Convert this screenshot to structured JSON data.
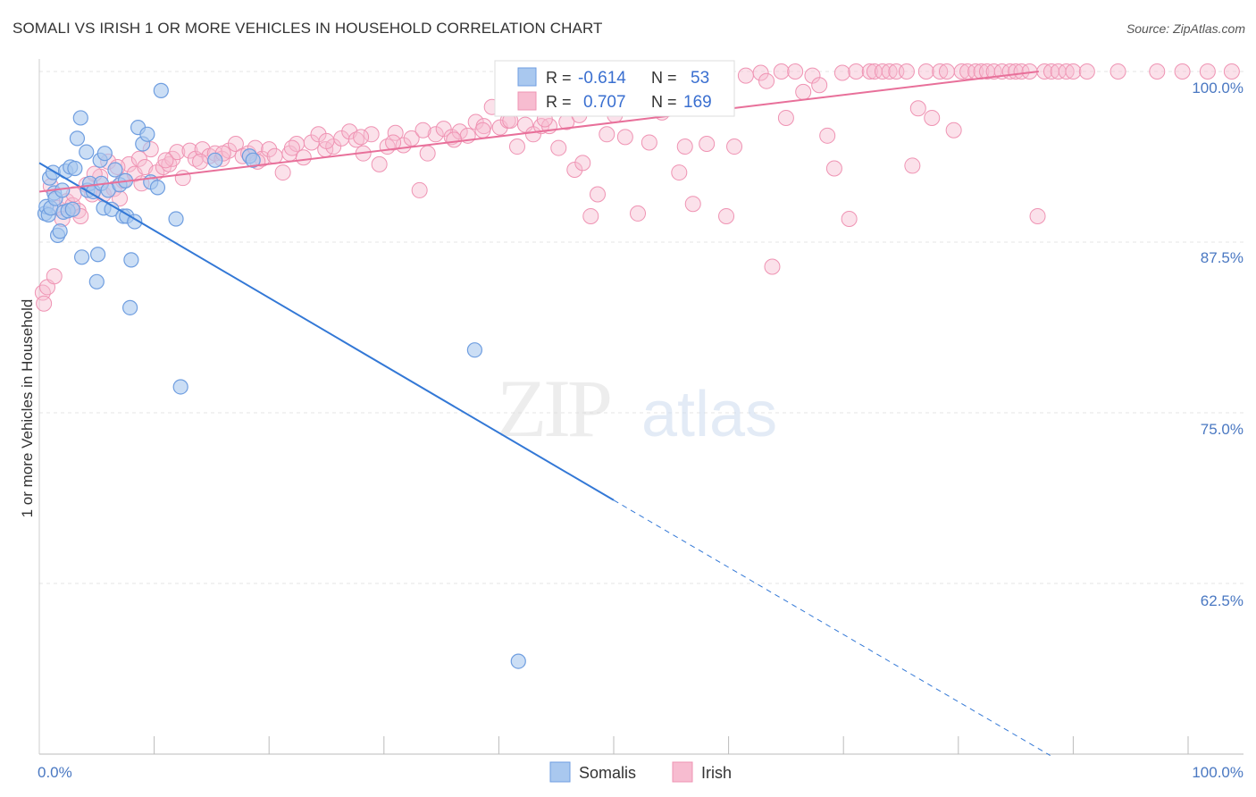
{
  "title": "SOMALI VS IRISH 1 OR MORE VEHICLES IN HOUSEHOLD CORRELATION CHART",
  "source": "Source: ZipAtlas.com",
  "watermark": {
    "zip": "ZIP",
    "atlas": "atlas"
  },
  "legend": {
    "somali": {
      "r_label": "R =",
      "r_value": "-0.614",
      "n_label": "N =",
      "n_value": "53"
    },
    "irish": {
      "r_label": "R =",
      "r_value": "0.707",
      "n_label": "N =",
      "n_value": "169"
    }
  },
  "colors": {
    "somali_fill": "#a9c8ef",
    "somali_stroke": "#6f9ee0",
    "somali_line": "#3378d6",
    "irish_fill": "#f7bcd0",
    "irish_stroke": "#ef93b3",
    "irish_line": "#e8709a",
    "grid": "#e6e6e6",
    "axis_text": "#4a78c2"
  },
  "chart_data": {
    "type": "scatter",
    "title": "SOMALI VS IRISH 1 OR MORE VEHICLES IN HOUSEHOLD CORRELATION CHART",
    "xlabel": "",
    "ylabel": "1 or more Vehicles in Household",
    "xlim": [
      0,
      100
    ],
    "ylim": [
      50,
      100
    ],
    "x_tick_labels": [
      "0.0%",
      "100.0%"
    ],
    "y_ticks": [
      62.5,
      75.0,
      87.5,
      100.0
    ],
    "y_tick_labels": [
      "62.5%",
      "75.0%",
      "87.5%",
      "100.0%"
    ],
    "grid": true,
    "legend_position": "top-center",
    "series": [
      {
        "name": "Somalis",
        "points": [
          [
            0.5,
            89.6
          ],
          [
            0.6,
            90.1
          ],
          [
            0.8,
            89.5
          ],
          [
            0.9,
            92.2
          ],
          [
            1.0,
            90.0
          ],
          [
            1.2,
            92.6
          ],
          [
            1.3,
            91.1
          ],
          [
            1.4,
            90.7
          ],
          [
            1.6,
            88.0
          ],
          [
            1.8,
            88.3
          ],
          [
            2.0,
            91.3
          ],
          [
            2.1,
            89.7
          ],
          [
            2.3,
            92.7
          ],
          [
            2.5,
            89.8
          ],
          [
            2.7,
            93.0
          ],
          [
            2.9,
            89.9
          ],
          [
            3.1,
            92.9
          ],
          [
            3.3,
            95.1
          ],
          [
            3.6,
            96.6
          ],
          [
            3.7,
            86.4
          ],
          [
            4.1,
            94.1
          ],
          [
            4.2,
            91.3
          ],
          [
            4.4,
            91.8
          ],
          [
            4.7,
            91.2
          ],
          [
            5.0,
            84.6
          ],
          [
            5.1,
            86.6
          ],
          [
            5.3,
            93.5
          ],
          [
            5.4,
            91.8
          ],
          [
            5.6,
            90.0
          ],
          [
            5.7,
            94.0
          ],
          [
            6.0,
            91.3
          ],
          [
            6.3,
            89.9
          ],
          [
            6.6,
            92.8
          ],
          [
            7.0,
            91.7
          ],
          [
            7.3,
            89.4
          ],
          [
            7.5,
            92.0
          ],
          [
            7.6,
            89.4
          ],
          [
            7.9,
            82.7
          ],
          [
            8.0,
            86.2
          ],
          [
            8.3,
            89.0
          ],
          [
            8.6,
            95.9
          ],
          [
            9.0,
            94.7
          ],
          [
            9.4,
            95.4
          ],
          [
            9.7,
            91.9
          ],
          [
            10.3,
            91.5
          ],
          [
            10.6,
            98.6
          ],
          [
            11.9,
            89.2
          ],
          [
            12.3,
            76.9
          ],
          [
            15.3,
            93.5
          ],
          [
            18.3,
            93.8
          ],
          [
            18.6,
            93.5
          ],
          [
            37.9,
            79.6
          ],
          [
            41.7,
            56.8
          ]
        ]
      },
      {
        "name": "Irish",
        "points": [
          [
            0.3,
            83.8
          ],
          [
            0.4,
            83.0
          ],
          [
            0.7,
            84.2
          ],
          [
            1.3,
            85.0
          ],
          [
            1.6,
            90.0
          ],
          [
            2.0,
            89.2
          ],
          [
            2.4,
            90.5
          ],
          [
            2.9,
            90.2
          ],
          [
            3.4,
            89.8
          ],
          [
            3.6,
            89.4
          ],
          [
            4.1,
            91.7
          ],
          [
            4.6,
            91.0
          ],
          [
            5.3,
            92.3
          ],
          [
            5.6,
            91.0
          ],
          [
            6.0,
            93.4
          ],
          [
            6.5,
            91.4
          ],
          [
            7.0,
            90.7
          ],
          [
            7.3,
            92.0
          ],
          [
            7.8,
            93.2
          ],
          [
            8.3,
            92.5
          ],
          [
            8.7,
            93.6
          ],
          [
            9.2,
            93.0
          ],
          [
            9.7,
            94.3
          ],
          [
            10.2,
            92.6
          ],
          [
            10.8,
            93.0
          ],
          [
            11.3,
            93.2
          ],
          [
            11.6,
            93.6
          ],
          [
            12.0,
            94.1
          ],
          [
            12.5,
            92.2
          ],
          [
            13.1,
            94.2
          ],
          [
            13.6,
            93.6
          ],
          [
            14.2,
            94.3
          ],
          [
            14.8,
            93.8
          ],
          [
            15.3,
            94.0
          ],
          [
            15.9,
            93.6
          ],
          [
            16.5,
            94.2
          ],
          [
            17.1,
            94.7
          ],
          [
            17.7,
            93.8
          ],
          [
            18.2,
            94.0
          ],
          [
            18.8,
            94.4
          ],
          [
            19.4,
            93.6
          ],
          [
            20.0,
            94.3
          ],
          [
            20.5,
            93.8
          ],
          [
            21.2,
            92.6
          ],
          [
            21.8,
            94.0
          ],
          [
            22.4,
            94.7
          ],
          [
            23.0,
            93.7
          ],
          [
            23.7,
            94.8
          ],
          [
            24.3,
            95.4
          ],
          [
            24.9,
            94.3
          ],
          [
            25.6,
            94.5
          ],
          [
            26.3,
            95.1
          ],
          [
            27.0,
            95.6
          ],
          [
            27.6,
            95.0
          ],
          [
            28.2,
            94.0
          ],
          [
            28.9,
            95.4
          ],
          [
            29.6,
            93.2
          ],
          [
            30.3,
            94.5
          ],
          [
            31.0,
            95.5
          ],
          [
            31.7,
            94.6
          ],
          [
            32.4,
            95.1
          ],
          [
            33.1,
            91.3
          ],
          [
            33.8,
            94.0
          ],
          [
            34.5,
            95.4
          ],
          [
            35.2,
            95.8
          ],
          [
            35.9,
            95.2
          ],
          [
            36.6,
            95.6
          ],
          [
            37.3,
            95.3
          ],
          [
            38.0,
            96.3
          ],
          [
            38.7,
            96.0
          ],
          [
            39.4,
            97.4
          ],
          [
            40.1,
            95.9
          ],
          [
            40.8,
            96.4
          ],
          [
            41.6,
            94.5
          ],
          [
            42.3,
            96.1
          ],
          [
            43.0,
            95.4
          ],
          [
            43.7,
            96.0
          ],
          [
            44.4,
            96.0
          ],
          [
            45.2,
            94.4
          ],
          [
            45.9,
            96.3
          ],
          [
            46.6,
            92.8
          ],
          [
            47.3,
            93.3
          ],
          [
            48.0,
            89.4
          ],
          [
            48.6,
            91.0
          ],
          [
            49.4,
            95.4
          ],
          [
            50.1,
            96.8
          ],
          [
            51.0,
            95.2
          ],
          [
            52.1,
            89.6
          ],
          [
            53.1,
            94.8
          ],
          [
            54.2,
            97.0
          ],
          [
            55.0,
            99.5
          ],
          [
            55.7,
            92.6
          ],
          [
            56.2,
            94.5
          ],
          [
            56.9,
            90.3
          ],
          [
            57.7,
            99.8
          ],
          [
            58.1,
            94.7
          ],
          [
            59.3,
            99.3
          ],
          [
            59.8,
            89.4
          ],
          [
            60.5,
            94.5
          ],
          [
            61.5,
            99.7
          ],
          [
            62.8,
            99.9
          ],
          [
            63.3,
            99.3
          ],
          [
            63.8,
            85.7
          ],
          [
            64.6,
            100
          ],
          [
            65.0,
            96.6
          ],
          [
            65.8,
            100
          ],
          [
            66.5,
            98.5
          ],
          [
            67.3,
            99.7
          ],
          [
            67.9,
            99.0
          ],
          [
            68.6,
            95.3
          ],
          [
            69.2,
            92.9
          ],
          [
            69.9,
            99.9
          ],
          [
            70.5,
            89.2
          ],
          [
            71.1,
            100
          ],
          [
            72.3,
            100
          ],
          [
            72.7,
            100
          ],
          [
            73.4,
            100
          ],
          [
            74.0,
            100
          ],
          [
            74.6,
            100
          ],
          [
            75.5,
            100
          ],
          [
            76.0,
            93.1
          ],
          [
            76.5,
            97.3
          ],
          [
            77.2,
            100
          ],
          [
            77.7,
            96.6
          ],
          [
            78.4,
            100
          ],
          [
            79.0,
            100
          ],
          [
            79.6,
            95.7
          ],
          [
            80.3,
            100
          ],
          [
            80.8,
            100
          ],
          [
            81.5,
            100
          ],
          [
            82.0,
            100
          ],
          [
            82.5,
            100
          ],
          [
            83.1,
            100
          ],
          [
            83.8,
            100
          ],
          [
            84.5,
            100
          ],
          [
            85.0,
            100
          ],
          [
            85.5,
            100
          ],
          [
            86.2,
            100
          ],
          [
            86.9,
            89.4
          ],
          [
            87.5,
            100
          ],
          [
            88.1,
            100
          ],
          [
            88.7,
            100
          ],
          [
            89.4,
            100
          ],
          [
            90.0,
            100
          ],
          [
            91.2,
            100
          ],
          [
            93.9,
            100
          ],
          [
            97.3,
            100
          ],
          [
            99.5,
            100
          ],
          [
            101.7,
            100
          ],
          [
            103.8,
            100
          ],
          [
            1.0,
            91.6
          ],
          [
            3.0,
            91.0
          ],
          [
            4.8,
            92.5
          ],
          [
            6.8,
            93.0
          ],
          [
            8.9,
            91.8
          ],
          [
            11.0,
            93.5
          ],
          [
            14.0,
            93.4
          ],
          [
            16.0,
            94.0
          ],
          [
            19.0,
            93.4
          ],
          [
            22.0,
            94.4
          ],
          [
            25.0,
            94.9
          ],
          [
            28.0,
            95.2
          ],
          [
            30.8,
            94.8
          ],
          [
            33.4,
            95.7
          ],
          [
            36.1,
            95.0
          ],
          [
            38.6,
            95.7
          ],
          [
            41.0,
            96.4
          ],
          [
            44.0,
            96.5
          ],
          [
            47.0,
            96.8
          ]
        ]
      }
    ],
    "trend_lines": [
      {
        "series": "Somalis",
        "from": [
          0,
          93.3
        ],
        "to": [
          50,
          68.6
        ],
        "dashed_to": [
          88,
          49.9
        ]
      },
      {
        "series": "Irish",
        "from": [
          0,
          91.2
        ],
        "to": [
          87,
          100
        ]
      }
    ],
    "bottom_legend": [
      "Somalis",
      "Irish"
    ]
  }
}
